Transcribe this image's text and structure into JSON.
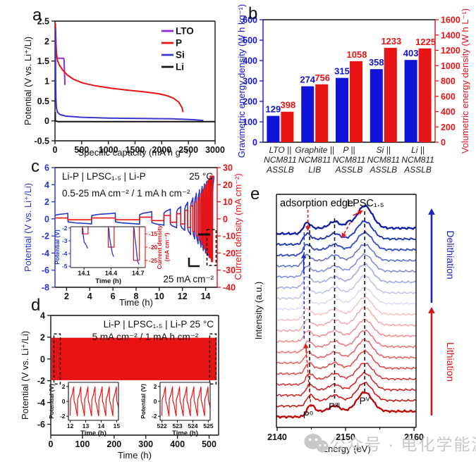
{
  "panel_labels": {
    "a": "a",
    "b": "b",
    "c": "c",
    "d": "d",
    "e": "e"
  },
  "colors": {
    "blue": "#0f14d8",
    "red": "#e81414",
    "purple": "#8f2bd4",
    "si_blue": "#3a36d0",
    "black": "#111111",
    "gray_watermark": "#c8c8c8"
  },
  "watermark": {
    "icon": "wechat-icon",
    "text": "公众号 · 电化学能源"
  },
  "chart_data": {
    "a": {
      "type": "line",
      "xlabel": "Specific capacity (mA h g⁻¹)",
      "ylabel": "Potential (V vs. Li⁺/Li)",
      "xlim": [
        0,
        3000
      ],
      "xticks": [
        0,
        500,
        1000,
        1500,
        2000,
        2500,
        3000
      ],
      "ylim": [
        -0.5,
        2.5
      ],
      "yticks": [
        2.5,
        2,
        1.5,
        1,
        0.5,
        0,
        -0.5
      ],
      "legend": [
        {
          "name": "LTO",
          "color": "#8f2bd4"
        },
        {
          "name": "P",
          "color": "#e81414"
        },
        {
          "name": "Si",
          "color": "#3a36d0"
        },
        {
          "name": "Li",
          "color": "#111111"
        }
      ],
      "series": [
        {
          "name": "LTO",
          "color": "#8f2bd4",
          "points": [
            [
              8,
              2.32
            ],
            [
              14,
              2.05
            ],
            [
              20,
              1.75
            ],
            [
              28,
              1.6
            ],
            [
              40,
              1.57
            ],
            [
              160,
              1.57
            ],
            [
              170,
              1.52
            ],
            [
              176,
              1.3
            ],
            [
              182,
              1.05
            ],
            [
              186,
              0.9
            ]
          ]
        },
        {
          "name": "P",
          "color": "#e81414",
          "points": [
            [
              6,
              2.45
            ],
            [
              10,
              2.3
            ],
            [
              18,
              1.95
            ],
            [
              28,
              1.7
            ],
            [
              45,
              1.52
            ],
            [
              80,
              1.4
            ],
            [
              140,
              1.28
            ],
            [
              230,
              1.15
            ],
            [
              350,
              1.04
            ],
            [
              520,
              0.95
            ],
            [
              750,
              0.88
            ],
            [
              1050,
              0.82
            ],
            [
              1350,
              0.77
            ],
            [
              1650,
              0.73
            ],
            [
              1900,
              0.69
            ],
            [
              2080,
              0.64
            ],
            [
              2220,
              0.57
            ],
            [
              2320,
              0.47
            ],
            [
              2380,
              0.33
            ],
            [
              2400,
              0.22
            ]
          ]
        },
        {
          "name": "Si",
          "color": "#3a36d0",
          "points": [
            [
              6,
              2.3
            ],
            [
              9,
              1.6
            ],
            [
              13,
              0.9
            ],
            [
              18,
              0.52
            ],
            [
              26,
              0.33
            ],
            [
              45,
              0.22
            ],
            [
              90,
              0.16
            ],
            [
              200,
              0.12
            ],
            [
              500,
              0.09
            ],
            [
              1000,
              0.07
            ],
            [
              1600,
              0.06
            ],
            [
              2200,
              0.05
            ],
            [
              2600,
              0.03
            ],
            [
              2780,
              0.01
            ]
          ]
        },
        {
          "name": "Li",
          "color": "#111111",
          "points": [
            [
              4,
              0.22
            ],
            [
              6,
              0.0
            ],
            [
              60,
              -0.02
            ],
            [
              2995,
              -0.02
            ]
          ]
        }
      ]
    },
    "b": {
      "type": "bar",
      "ylabel_left": "Gravimetric energy density (W h kg⁻¹)",
      "ylabel_right": "Volumetric energy density (W h L⁻¹)",
      "ylim_left": [
        0,
        600
      ],
      "yticks_left": [
        0,
        100,
        200,
        300,
        400,
        500,
        600
      ],
      "ylim_right": [
        0,
        1600
      ],
      "yticks_right": [
        0,
        200,
        400,
        600,
        800,
        1000,
        1200,
        1400,
        1600
      ],
      "categories": [
        [
          "LTO ||",
          "NCM811",
          "ASSLB"
        ],
        [
          "Graphite ||",
          "NCM811",
          "LIB"
        ],
        [
          "P ||",
          "NCM811",
          "ASSLB"
        ],
        [
          "Si ||",
          "NCM811",
          "ASSLB"
        ],
        [
          "Li ||",
          "NCM811",
          "ASSLB"
        ]
      ],
      "series": [
        {
          "name": "Gravimetric energy density (W h kg⁻¹)",
          "axis": "left",
          "color": "#0f14d8",
          "values": [
            129,
            274,
            315,
            358,
            403
          ]
        },
        {
          "name": "Volumetric energy density (W h L⁻¹)",
          "axis": "right",
          "color": "#e81414",
          "values": [
            398,
            756,
            1058,
            1233,
            1225
          ]
        }
      ]
    },
    "c": {
      "type": "line",
      "title": "Li-P | LPSC₁.₅ | Li-P",
      "temperature": "25 °C",
      "condition": "0.5-25 mA cm⁻² / 1 mA h cm⁻²",
      "note": "25 mA cm⁻²",
      "xlabel": "Time (h)",
      "xlim": [
        1,
        15
      ],
      "xticks": [
        2,
        4,
        6,
        8,
        10,
        12,
        14
      ],
      "ylabel_left": "Potential (V vs. Li⁺/Li)",
      "ylim_left": [
        -8,
        6
      ],
      "yticks_left": [
        6,
        4,
        2,
        0,
        -2,
        -4,
        -6,
        -8
      ],
      "ylabel_right": "Current density (mA cm⁻²)",
      "ylim_right": [
        -40,
        30
      ],
      "yticks_right": [
        30,
        20,
        10,
        0,
        -10,
        -20,
        -30,
        -40
      ],
      "half_cycles": [
        [
          0.9,
          2.1,
          0.5,
          0.65
        ],
        [
          2.1,
          4.15,
          -0.5,
          -0.6
        ],
        [
          4.15,
          6.2,
          0.5,
          0.68
        ],
        [
          6.2,
          8.3,
          -0.5,
          -0.62
        ],
        [
          8.3,
          9.35,
          1,
          0.85
        ],
        [
          9.35,
          10.4,
          -1,
          -0.75
        ],
        [
          10.4,
          10.95,
          2,
          1.15
        ],
        [
          10.95,
          11.5,
          -2,
          -1.05
        ],
        [
          11.5,
          11.85,
          3,
          1.45
        ],
        [
          11.85,
          12.2,
          -3,
          -1.35
        ],
        [
          12.2,
          12.45,
          5,
          1.95
        ],
        [
          12.45,
          12.7,
          -5,
          -1.85
        ],
        [
          12.7,
          12.9,
          7.5,
          2.45
        ],
        [
          12.9,
          13.05,
          -7.5,
          -2.35
        ],
        [
          13.05,
          13.2,
          10,
          3.0
        ],
        [
          13.2,
          13.35,
          -10,
          -2.9
        ],
        [
          13.35,
          13.47,
          12.5,
          3.4
        ],
        [
          13.47,
          13.6,
          -12.5,
          -3.3
        ],
        [
          13.6,
          13.7,
          15,
          3.8
        ],
        [
          13.7,
          13.8,
          -15,
          -3.7
        ],
        [
          13.8,
          13.9,
          17.5,
          4.1
        ],
        [
          13.9,
          14.0,
          -17.5,
          -4.0
        ],
        [
          14.0,
          14.1,
          20,
          4.4
        ],
        [
          14.1,
          14.2,
          -20,
          -4.3
        ],
        [
          14.2,
          14.3,
          22.5,
          4.7
        ],
        [
          14.3,
          14.4,
          -22.5,
          -4.6
        ],
        [
          14.4,
          14.5,
          25,
          5.0
        ],
        [
          14.5,
          14.6,
          -25,
          -4.8
        ],
        [
          14.6,
          14.72,
          25,
          5.0
        ]
      ],
      "inset": {
        "xlabel": "Time (h)",
        "xlim": [
          13.95,
          14.78
        ],
        "xticks": [
          14.1,
          14.4,
          14.7
        ],
        "ylabel_left": "Potential (V)",
        "ylim_left": [
          -5.1,
          -1.9
        ],
        "yticks_left": [
          -2,
          -3,
          -4,
          -5
        ],
        "ylabel_right": [
          "Current density",
          "(mA cm⁻²)"
        ],
        "ylim_right": [
          -27.7,
          -12.3
        ],
        "yticks_right": [
          -15,
          -20,
          -25
        ],
        "spikes": [
          [
            14.08,
            -3.6,
            -15
          ],
          [
            14.37,
            -4.25,
            -20
          ],
          [
            14.65,
            -4.85,
            -25
          ]
        ]
      }
    },
    "d": {
      "type": "line",
      "title": "Li-P | LPSC₁.₅ | Li-P",
      "temperature": "25 °C",
      "condition": "5 mA cm⁻² / 1 mA h cm⁻²",
      "xlabel": "Time (h)",
      "xlim": [
        0,
        530
      ],
      "xticks": [
        0,
        100,
        200,
        300,
        400,
        500
      ],
      "ylabel": "Potential (V vs. Li⁺/Li)",
      "ylim": [
        -7,
        4
      ],
      "yticks": [
        4,
        2,
        0,
        -2,
        -4,
        -6
      ],
      "band": {
        "t0": 2,
        "t1": 524,
        "v_amp": 1.95,
        "color": "#e81414"
      },
      "dashed_boxes": [
        [
          10,
          30
        ],
        [
          502,
          522
        ]
      ],
      "insets": [
        {
          "xlabel": "Time (h)",
          "xlim": [
            11.88,
            15.12
          ],
          "xticks": [
            12,
            13,
            14,
            15
          ],
          "ylabel": "Potential (V)",
          "ylim": [
            -2.55,
            2.55
          ],
          "yticks": [
            2,
            0,
            -2
          ]
        },
        {
          "xlabel": "Time (h)",
          "xlim": [
            521.88,
            525.12
          ],
          "xticks": [
            522,
            523,
            524,
            525
          ],
          "ylabel": "Potential (V)",
          "ylim": [
            -2.55,
            2.55
          ],
          "yticks": [
            2,
            0,
            -2
          ]
        }
      ]
    },
    "e": {
      "type": "line",
      "xlabel": "Energy (eV)",
      "ylabel": "Intensity (a.u.)",
      "xlim": [
        2139.9,
        2160.3
      ],
      "xticks": [
        2140,
        2150,
        2160
      ],
      "minor_xticks": [
        2145,
        2155
      ],
      "n_curves": 18,
      "colors": [
        "#c00000",
        "#cc0d0d",
        "#d61d1d",
        "#de3030",
        "#e54646",
        "#ea5d5d",
        "#ef7575",
        "#f38e8e",
        "#f6a8a8",
        "#f9c3c3",
        "#d9ddf7",
        "#bcc3f1",
        "#9ca7e9",
        "#7b8adf",
        "#5a6dd3",
        "#3c51c6",
        "#2136b8",
        "#0c1ca8"
      ],
      "peaks": {
        "P0_start": 2144.9,
        "P0_end": 2144.35,
        "PIII": 2148.4,
        "PV": 2152.8
      },
      "dashed_lines_ev": [
        2144.75,
        2148.4,
        2152.8
      ],
      "edge_line_ev": 2143.95,
      "annotations": {
        "adsorption_edge": "adsorption edge",
        "lpsc": "LPSC₁.₅",
        "p0": "P⁰",
        "piii": "Pᴵᴵᴵ",
        "pv": "Pⱽ",
        "delithiation": "Delithiation",
        "lithiation": "Lithiation"
      }
    }
  }
}
